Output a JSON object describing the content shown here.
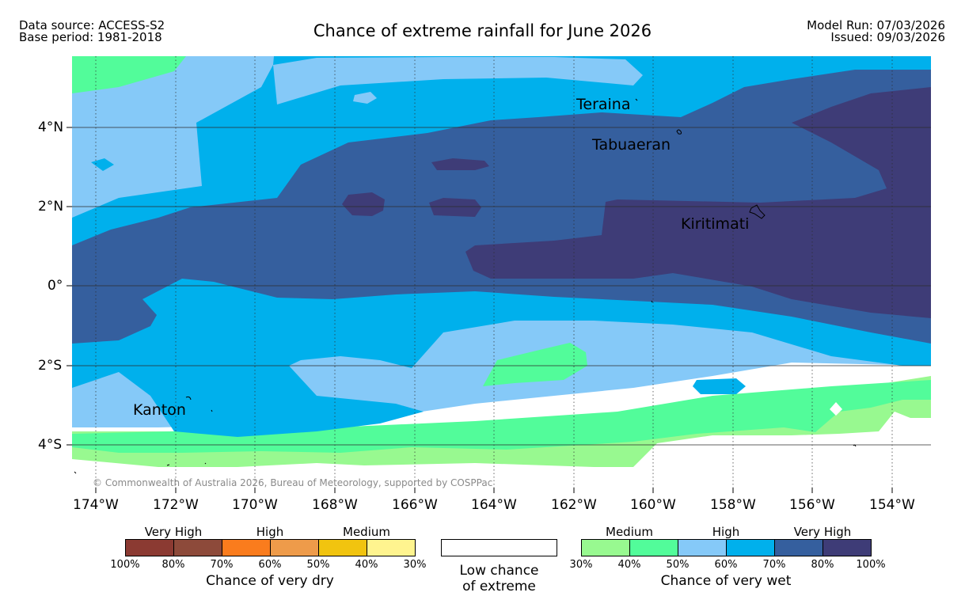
{
  "header": {
    "data_source": "Data source: ACCESS-S2",
    "base_period": "Base period: 1981-2018",
    "title": "Chance of extreme rainfall for June 2026",
    "model_run": "Model Run: 07/03/2026",
    "issued": "Issued: 09/03/2026"
  },
  "map": {
    "lat_labels": [
      "4°N",
      "2°N",
      "0°",
      "2°S",
      "4°S"
    ],
    "lon_labels": [
      "174°W",
      "172°W",
      "170°W",
      "168°W",
      "166°W",
      "164°W",
      "162°W",
      "160°W",
      "158°W",
      "156°W",
      "154°W"
    ],
    "places": [
      "Teraina",
      "Tabuaeran",
      "Kiritimati",
      "Kanton"
    ],
    "copyright": "© Commonwealth of Australia 2026, Bureau of Meteorology, supported by COSPPac"
  },
  "legend": {
    "dry": {
      "categories": [
        "Very High",
        "High",
        "Medium"
      ],
      "ticks": [
        "100%",
        "80%",
        "70%",
        "60%",
        "50%",
        "40%",
        "30%"
      ],
      "title": "Chance of very dry",
      "colors": [
        "#8b3a32",
        "#8d4a3a",
        "#fa7c1d",
        "#ee9b4a",
        "#f1c40f",
        "#fff48f"
      ]
    },
    "low": {
      "line1": "Low chance",
      "line2": "of extreme",
      "color": "#ffffff"
    },
    "wet": {
      "categories": [
        "Medium",
        "High",
        "Very High"
      ],
      "ticks": [
        "30%",
        "40%",
        "50%",
        "60%",
        "70%",
        "80%",
        "100%"
      ],
      "title": "Chance of very wet",
      "colors": [
        "#98f990",
        "#52fc9a",
        "#85c9f8",
        "#00b0ec",
        "#355f9e",
        "#3e3c77"
      ]
    }
  }
}
